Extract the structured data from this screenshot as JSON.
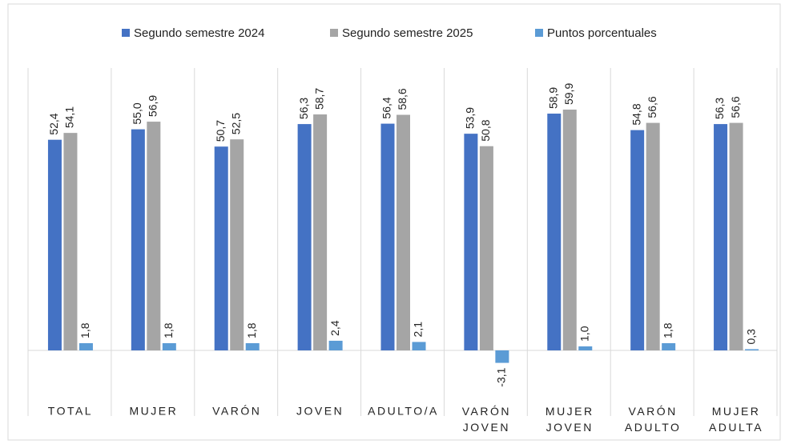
{
  "chart_data": {
    "type": "bar",
    "categories": [
      "TOTAL",
      "MUJER",
      "VARÓN",
      "JOVEN",
      "ADULTO/A",
      "VARÓN JOVEN",
      "MUJER JOVEN",
      "VARÓN ADULTO",
      "MUJER ADULTA"
    ],
    "series": [
      {
        "name": "Segundo semestre 2024",
        "color": "#4472c4",
        "values": [
          52.4,
          55.0,
          50.7,
          56.3,
          56.4,
          53.9,
          58.9,
          54.8,
          56.3
        ],
        "value_labels": [
          "52,4",
          "55,0",
          "50,7",
          "56,3",
          "56,4",
          "53,9",
          "58,9",
          "54,8",
          "56,3"
        ]
      },
      {
        "name": "Segundo semestre 2025",
        "color": "#a5a5a5",
        "values": [
          54.1,
          56.9,
          52.5,
          58.7,
          58.6,
          50.8,
          59.9,
          56.6,
          56.6
        ],
        "value_labels": [
          "54,1",
          "56,9",
          "52,5",
          "58,7",
          "58,6",
          "50,8",
          "59,9",
          "56,6",
          "56,6"
        ]
      },
      {
        "name": "Puntos porcentuales",
        "color": "#5b9bd5",
        "values": [
          1.8,
          1.8,
          1.8,
          2.4,
          2.1,
          -3.1,
          1.0,
          1.8,
          0.3
        ],
        "value_labels": [
          "1,8",
          "1,8",
          "1,8",
          "2,4",
          "2,1",
          "-3,1",
          "1,0",
          "1,8",
          "0,3"
        ]
      }
    ],
    "legend": "top"
  }
}
